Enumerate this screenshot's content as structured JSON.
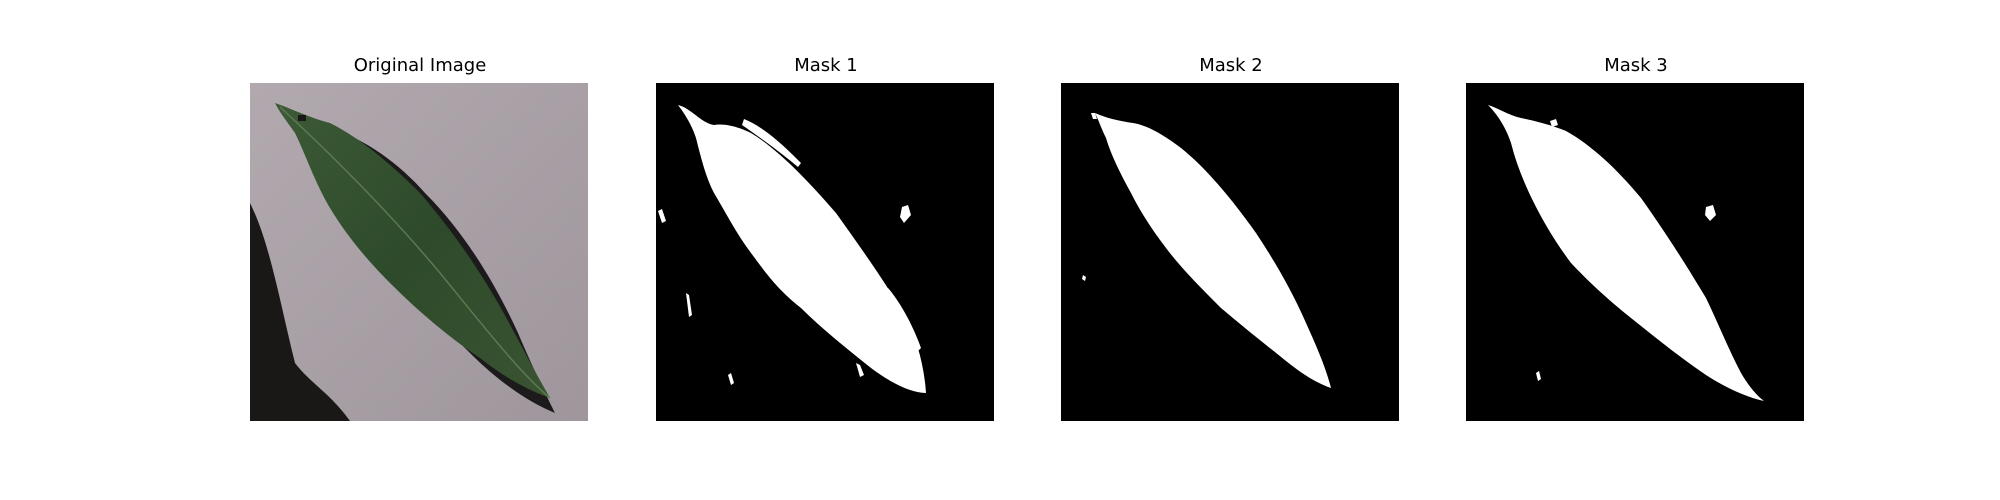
{
  "panels": [
    {
      "title": "Original Image",
      "image": "photo of a green leaf on a grey speckled surface"
    },
    {
      "title": "Mask 1",
      "image": "binary segmentation mask"
    },
    {
      "title": "Mask 2",
      "image": "binary segmentation mask"
    },
    {
      "title": "Mask 3",
      "image": "binary segmentation mask"
    }
  ],
  "colors": {
    "background": "#ffffff",
    "mask_fg": "#ffffff",
    "mask_bg": "#000000",
    "leaf": "#2f4a2a",
    "surface": "#a49ca2"
  }
}
